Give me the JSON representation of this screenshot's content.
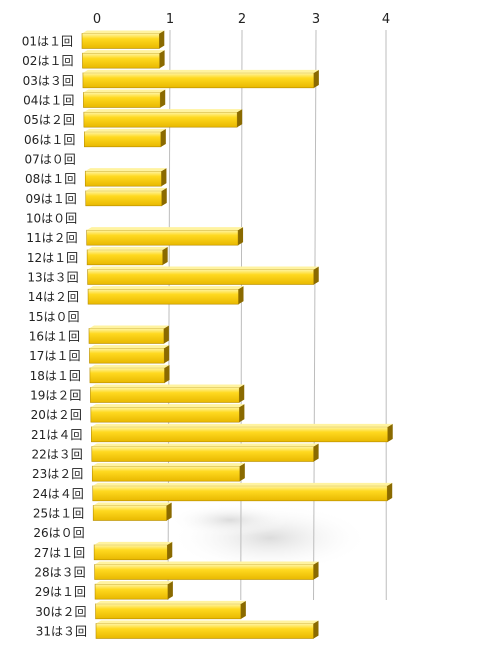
{
  "chart_data": {
    "type": "bar",
    "orientation": "horizontal",
    "title": "",
    "xlabel": "",
    "ylabel": "",
    "xlim": [
      0,
      4
    ],
    "x_ticks": [
      "0",
      "1",
      "2",
      "3",
      "4"
    ],
    "grid": true,
    "categories": [
      "01は１回",
      "02は１回",
      "03は３回",
      "04は１回",
      "05は２回",
      "06は１回",
      "07は０回",
      "08は１回",
      "09は１回",
      "10は０回",
      "11は２回",
      "12は１回",
      "13は３回",
      "14は２回",
      "15は０回",
      "16は１回",
      "17は１回",
      "18は１回",
      "19は２回",
      "20は２回",
      "21は４回",
      "22は３回",
      "23は２回",
      "24は４回",
      "25は１回",
      "26は０回",
      "27は１回",
      "28は３回",
      "29は１回",
      "30は２回",
      "31は３回"
    ],
    "values": [
      1,
      1,
      3,
      1,
      2,
      1,
      0,
      1,
      1,
      0,
      2,
      1,
      3,
      2,
      0,
      1,
      1,
      1,
      2,
      2,
      4,
      3,
      2,
      4,
      1,
      0,
      1,
      3,
      1,
      2,
      3
    ],
    "colors": {
      "bar_face": "#ffd21a",
      "bar_highlight": "#fff3a0",
      "bar_side": "#8a6a00",
      "bar_bottom": "#c79a00",
      "grid": "#bdbdbd"
    }
  }
}
